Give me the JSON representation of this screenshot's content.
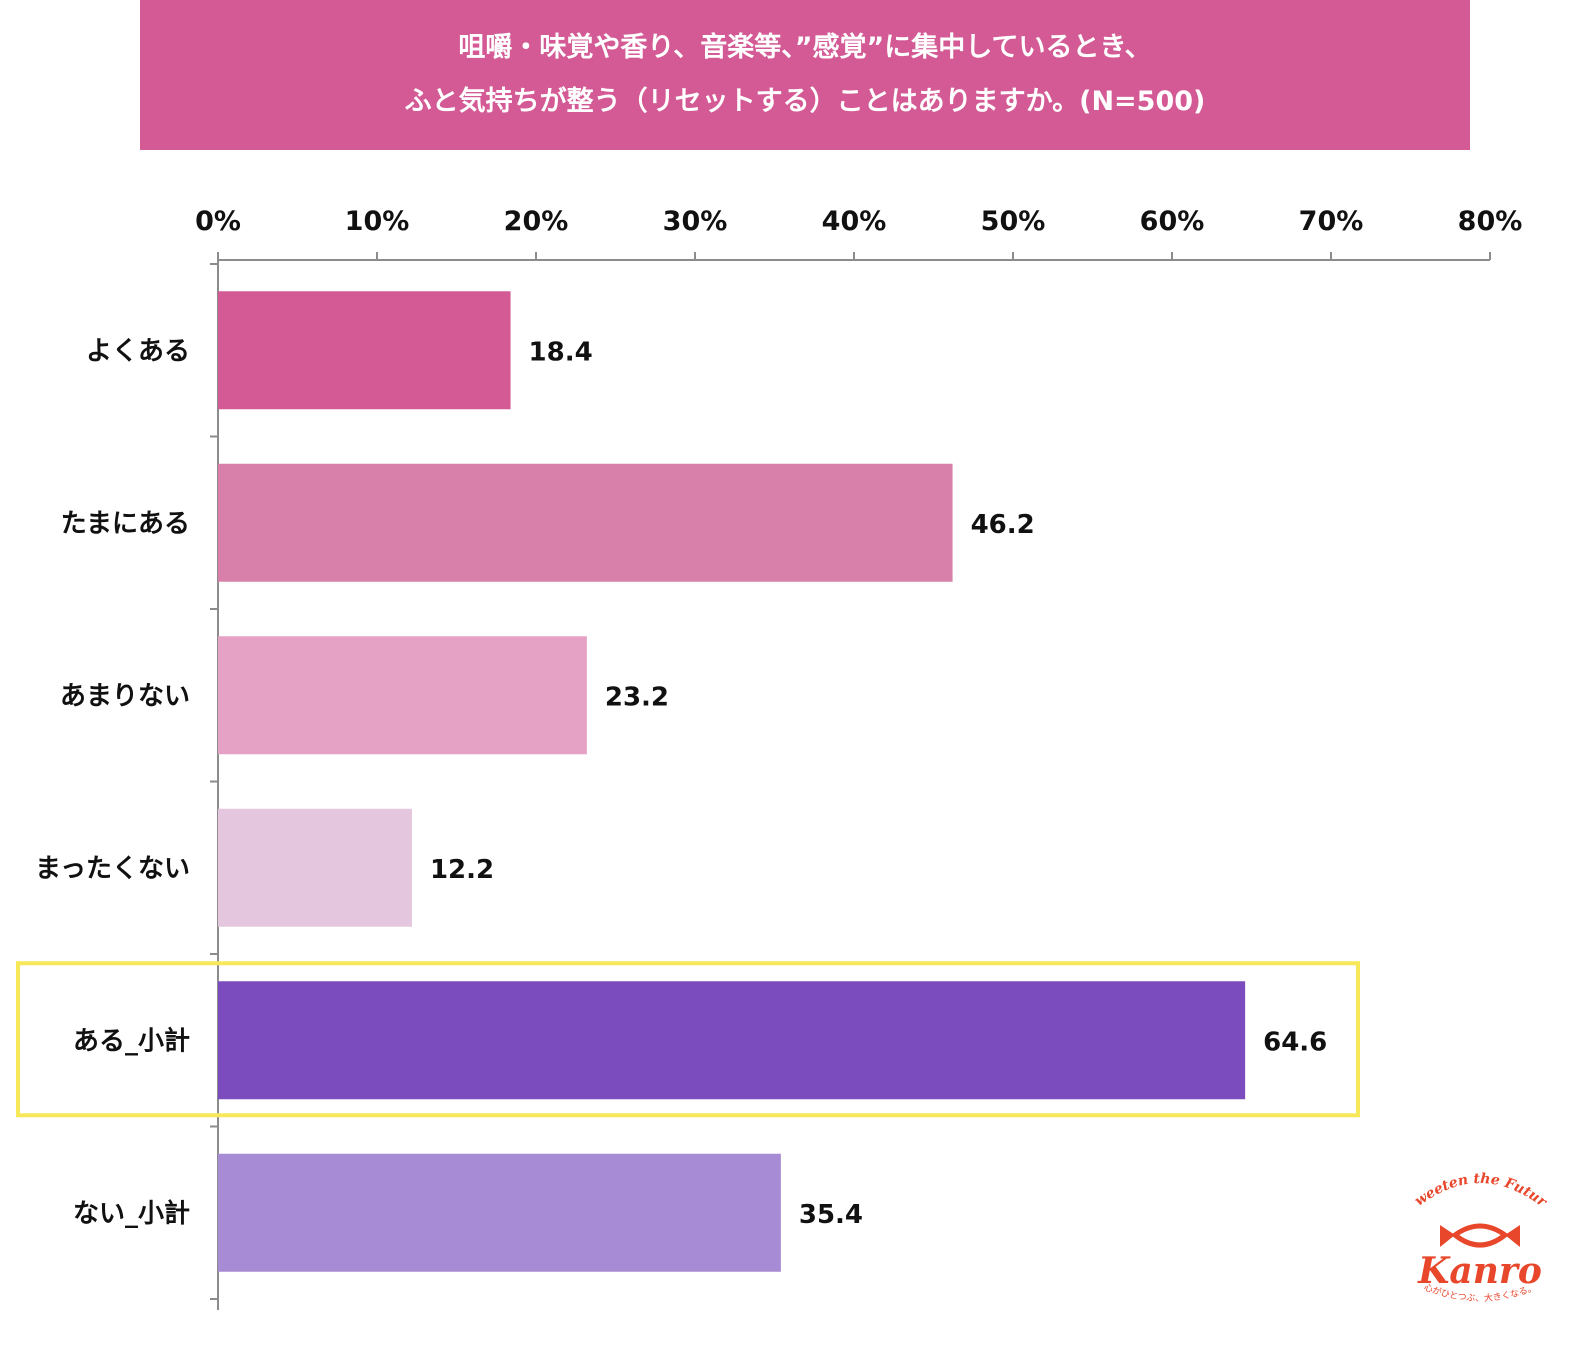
{
  "title_lines": [
    "咀嚼・味覚や香り、音楽等、”感覚”に集中しているとき、",
    "ふと気持ちが整う（リセットする）ことはありますか。(N=500)"
  ],
  "chart_data": {
    "type": "bar",
    "orientation": "horizontal",
    "title": "咀嚼・味覚や香り、音楽等、”感覚”に集中しているとき、ふと気持ちが整う（リセットする）ことはありますか。(N=500)",
    "categories": [
      "よくある",
      "たまにある",
      "あまりない",
      "まったくない",
      "ある_小計",
      "ない_小計"
    ],
    "values": [
      18.4,
      46.2,
      23.2,
      12.2,
      64.6,
      35.4
    ],
    "value_labels": [
      "18.4",
      "46.2",
      "23.2",
      "12.2",
      "64.6",
      "35.4"
    ],
    "colors": [
      "#d35a94",
      "#d980aa",
      "#e6a2c5",
      "#e4c7de",
      "#7b4cbe",
      "#a78bd4"
    ],
    "xlim": [
      0,
      80
    ],
    "x_ticks": [
      0,
      10,
      20,
      30,
      40,
      50,
      60,
      70,
      80
    ],
    "x_tick_labels": [
      "0%",
      "10%",
      "20%",
      "30%",
      "40%",
      "50%",
      "60%",
      "70%",
      "80%"
    ],
    "axis_position": "top",
    "grid": false,
    "highlighted_category": "ある_小計",
    "highlight_color": "#f7e85a"
  },
  "logo": {
    "tagline_top": "Sweeten the Future",
    "brand": "Kanro",
    "tagline_bottom": "心がひとつぶ、大きくなる。",
    "color": "#e8472b"
  }
}
